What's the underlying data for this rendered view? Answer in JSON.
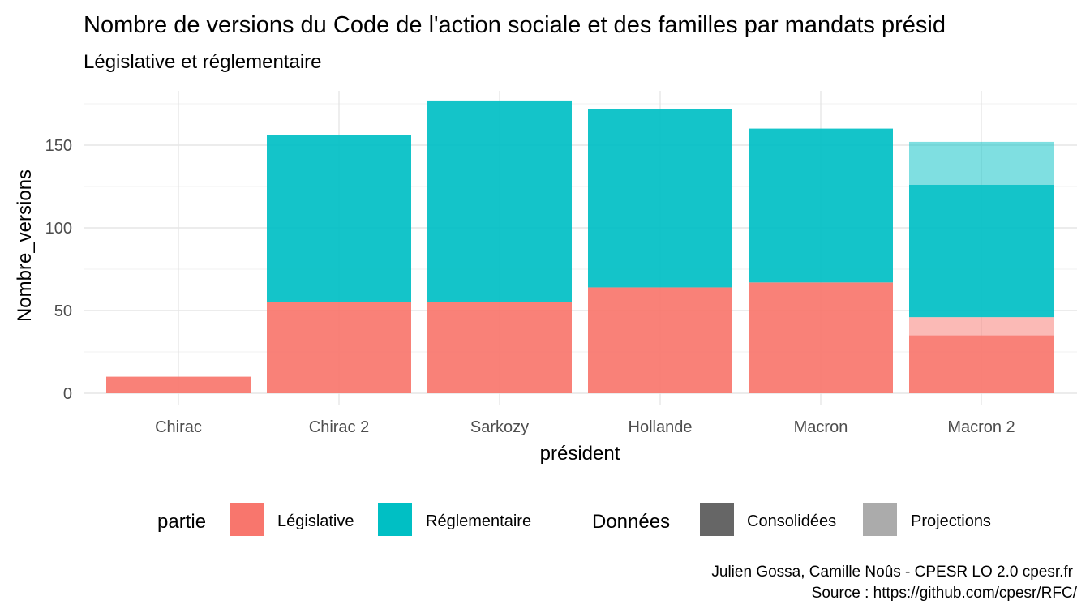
{
  "chart_data": {
    "type": "bar",
    "title": "Nombre de versions du Code de l'action sociale et des familles par mandats présid",
    "subtitle": "Législative et réglementaire",
    "xlabel": "président",
    "ylabel": "Nombre_versions",
    "categories": [
      "Chirac",
      "Chirac 2",
      "Sarkozy",
      "Hollande",
      "Macron",
      "Macron 2"
    ],
    "ylim": [
      0,
      187
    ],
    "yticks": [
      0,
      50,
      100,
      150
    ],
    "grid": true,
    "stacked": true,
    "legend_position": "bottom",
    "series": [
      {
        "name": "Législative",
        "data": "Consolidées",
        "color": "#F8766D",
        "values": [
          10,
          55,
          55,
          64,
          67,
          35
        ]
      },
      {
        "name": "Législative",
        "data": "Projections",
        "color": "#F8766D",
        "values": [
          0,
          0,
          0,
          0,
          0,
          11
        ]
      },
      {
        "name": "Réglementaire",
        "data": "Consolidées",
        "color": "#00BFC4",
        "values": [
          0,
          101,
          122,
          108,
          93,
          80
        ]
      },
      {
        "name": "Réglementaire",
        "data": "Projections",
        "color": "#00BFC4",
        "values": [
          0,
          0,
          0,
          0,
          0,
          26
        ]
      }
    ],
    "legend": {
      "partie_title": "partie",
      "partie_items": [
        {
          "label": "Législative",
          "color": "#F8766D"
        },
        {
          "label": "Réglementaire",
          "color": "#00BFC4"
        }
      ],
      "donnees_title": "Données",
      "donnees_items": [
        {
          "label": "Consolidées",
          "color": "#666666"
        },
        {
          "label": "Projections",
          "color": "#ababab"
        }
      ]
    },
    "caption_lines": [
      "Julien Gossa, Camille Noûs - CPESR LO 2.0 cpesr.fr",
      "Source : https://github.com/cpesr/RFC/"
    ]
  }
}
